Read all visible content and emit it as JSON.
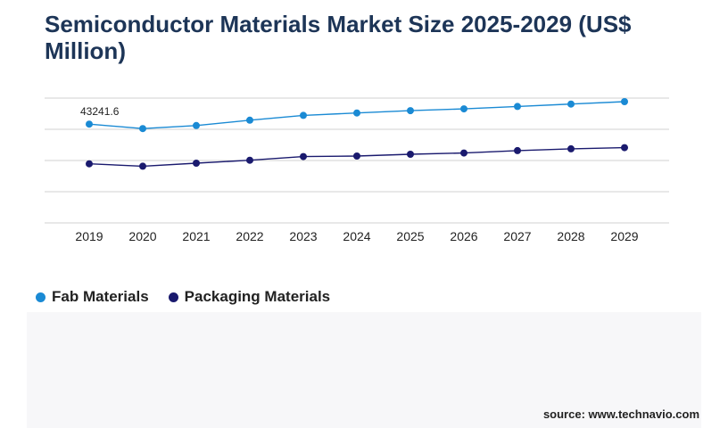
{
  "title": "Semiconductor Materials Market Size 2025-2029 (US$ Million)",
  "source": "source: www.technavio.com",
  "colors": {
    "fab": "#1a8ad4",
    "packaging": "#1a1a6e",
    "gridline": "#d0d0d0",
    "title": "#1d3557"
  },
  "chart_data": {
    "type": "line",
    "x": [
      "2019",
      "2020",
      "2021",
      "2022",
      "2023",
      "2024",
      "2025",
      "2026",
      "2027",
      "2028",
      "2029"
    ],
    "series": [
      {
        "name": "Fab Materials",
        "values": [
          43241.6,
          42500,
          43000,
          43900,
          44700,
          45100,
          45500,
          45800,
          46200,
          46600,
          47000
        ],
        "point_labels": [
          "43241.6",
          "",
          "",
          "",
          "",
          "",
          "",
          "",
          "",
          "",
          ""
        ]
      },
      {
        "name": "Packaging Materials",
        "values": [
          36600,
          36200,
          36700,
          37200,
          37800,
          37900,
          38200,
          38400,
          38800,
          39100,
          39300
        ]
      }
    ],
    "ylim": [
      26700,
      47600
    ],
    "grid": true,
    "legend": "bottom-left"
  }
}
